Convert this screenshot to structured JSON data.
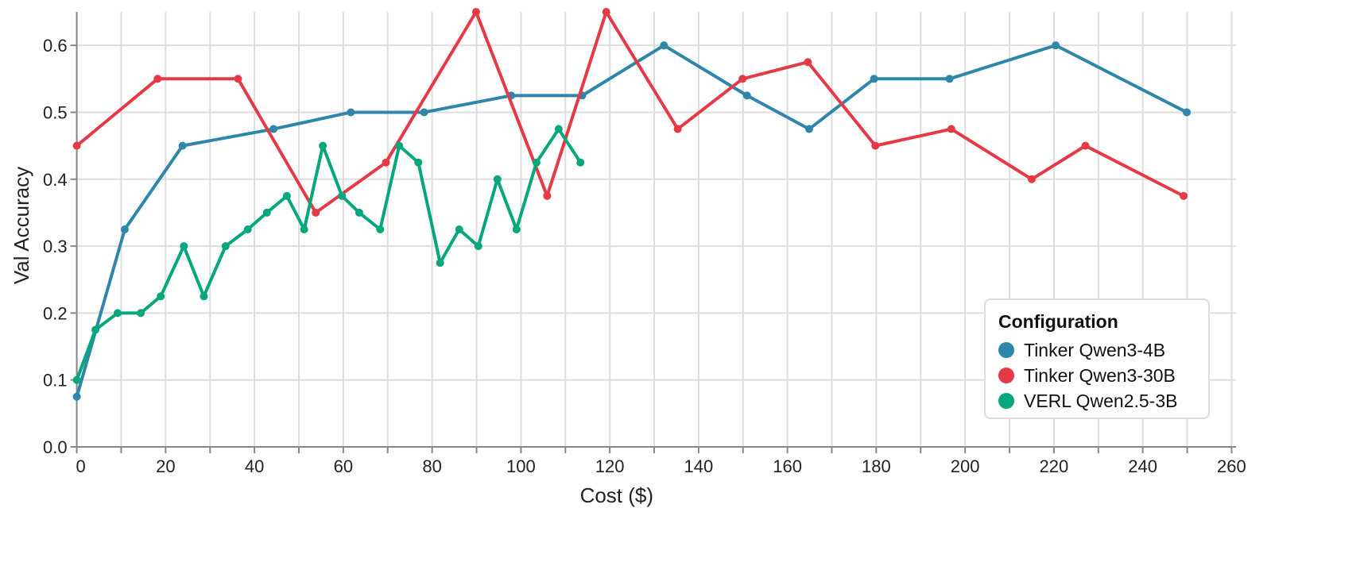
{
  "chart_data": {
    "type": "line",
    "title": "",
    "xlabel": "Cost ($)",
    "ylabel": "Val Accuracy",
    "xlim": [
      0,
      261
    ],
    "ylim": [
      0,
      0.65
    ],
    "xticks": [
      0,
      20,
      40,
      60,
      80,
      100,
      120,
      140,
      160,
      180,
      200,
      220,
      240,
      260
    ],
    "yticks": [
      "0.0",
      "0.1",
      "0.2",
      "0.3",
      "0.4",
      "0.5",
      "0.6"
    ],
    "grid": true,
    "legend": {
      "title": "Configuration",
      "placement": "bottom-right"
    },
    "series": [
      {
        "name": "Tinker Qwen3-4B",
        "color": "#2e86ab",
        "x": [
          0,
          10.8,
          23.8,
          44.3,
          61.7,
          78.2,
          97.8,
          113.8,
          132.2,
          150.9,
          164.9,
          179.5,
          196.5,
          220.4,
          249.9
        ],
        "y": [
          0.075,
          0.325,
          0.45,
          0.475,
          0.5,
          0.5,
          0.525,
          0.525,
          0.6,
          0.525,
          0.475,
          0.55,
          0.55,
          0.6,
          0.5
        ]
      },
      {
        "name": "Tinker Qwen3-30B",
        "color": "#e63946",
        "x": [
          0,
          18.2,
          36.3,
          53.8,
          69.6,
          89.9,
          105.9,
          119.2,
          135.3,
          149.9,
          164.6,
          179.8,
          196.9,
          215,
          227.1,
          249.2
        ],
        "y": [
          0.45,
          0.55,
          0.55,
          0.35,
          0.425,
          0.65,
          0.375,
          0.65,
          0.475,
          0.55,
          0.575,
          0.45,
          0.475,
          0.4,
          0.45,
          0.375
        ]
      },
      {
        "name": "VERL Qwen2.5-3B",
        "color": "#06a77d",
        "x": [
          0,
          4.2,
          9.2,
          14.4,
          18.9,
          24.1,
          28.6,
          33.5,
          38.5,
          42.8,
          47.3,
          51.2,
          55.4,
          59.7,
          63.6,
          68.3,
          72.6,
          76.9,
          81.8,
          86.1,
          90.4,
          94.7,
          99,
          103.5,
          108.5,
          113.4
        ],
        "y": [
          0.1,
          0.175,
          0.2,
          0.2,
          0.225,
          0.3,
          0.225,
          0.3,
          0.325,
          0.35,
          0.375,
          0.325,
          0.45,
          0.375,
          0.35,
          0.325,
          0.45,
          0.425,
          0.275,
          0.325,
          0.3,
          0.4,
          0.325,
          0.425,
          0.475,
          0.425
        ]
      }
    ]
  }
}
